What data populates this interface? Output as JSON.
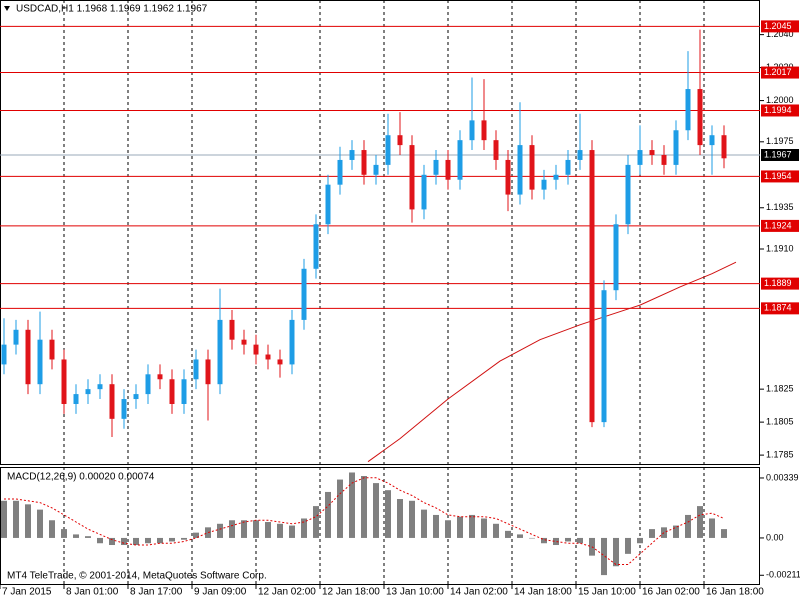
{
  "chart_data": [
    {
      "type": "candlestick",
      "title": "USDCAD,H1  1.1968 1.1969 1.1962 1.1967",
      "x": [
        1,
        4,
        7,
        10,
        13,
        16,
        19,
        22,
        25,
        28,
        31,
        34,
        37,
        40,
        43,
        46,
        49,
        52,
        55,
        58,
        61,
        64,
        67,
        70,
        73,
        76,
        79,
        82,
        85,
        88,
        91,
        94,
        97,
        100,
        103,
        106,
        109,
        112,
        115,
        118,
        121,
        124,
        127,
        130,
        133,
        136,
        139,
        142,
        145,
        148,
        151,
        154,
        157,
        160,
        163,
        166,
        169,
        172,
        175,
        178,
        181
      ],
      "open": [
        1.184,
        1.1852,
        1.1861,
        1.1828,
        1.1855,
        1.1843,
        1.1816,
        1.1822,
        1.1825,
        1.1828,
        1.1807,
        1.1819,
        1.1822,
        1.1834,
        1.1831,
        1.1816,
        1.1831,
        1.1843,
        1.1828,
        1.1867,
        1.1855,
        1.1852,
        1.1846,
        1.1843,
        1.184,
        1.1867,
        1.1898,
        1.1925,
        1.1949,
        1.1964,
        1.197,
        1.1955,
        1.1961,
        1.1979,
        1.1973,
        1.1934,
        1.1955,
        1.1964,
        1.1952,
        1.1976,
        1.1988,
        1.1976,
        1.1964,
        1.1943,
        1.1973,
        1.1946,
        1.1952,
        1.1955,
        1.1964,
        1.197,
        1.1805,
        1.1885,
        1.1925,
        1.1961,
        1.197,
        1.1967,
        1.1961,
        1.1982,
        1.2007,
        1.1973,
        1.1979
      ],
      "high": [
        1.1868,
        1.1867,
        1.1867,
        1.1872,
        1.1861,
        1.1849,
        1.1828,
        1.1831,
        1.1834,
        1.1834,
        1.1825,
        1.1828,
        1.184,
        1.184,
        1.1837,
        1.1837,
        1.1849,
        1.1849,
        1.1886,
        1.1873,
        1.1861,
        1.1858,
        1.1852,
        1.1849,
        1.1873,
        1.1904,
        1.1931,
        1.1955,
        1.1972,
        1.1976,
        1.1976,
        1.1967,
        1.1992,
        1.1993,
        1.1979,
        1.1961,
        1.197,
        1.197,
        1.1982,
        1.2014,
        1.2013,
        1.1982,
        1.197,
        1.1999,
        1.1979,
        1.1958,
        1.1961,
        1.197,
        1.1992,
        1.1976,
        1.1891,
        1.1931,
        1.1967,
        1.1985,
        1.1976,
        1.1973,
        1.1988,
        1.203,
        1.2043,
        1.1985,
        1.1985
      ],
      "low": [
        1.1834,
        1.1846,
        1.1822,
        1.1822,
        1.1837,
        1.181,
        1.181,
        1.1816,
        1.1819,
        1.1796,
        1.1801,
        1.1813,
        1.1816,
        1.1825,
        1.181,
        1.181,
        1.1825,
        1.1806,
        1.1822,
        1.1849,
        1.1846,
        1.184,
        1.1837,
        1.1832,
        1.1834,
        1.1861,
        1.1892,
        1.1919,
        1.1943,
        1.1958,
        1.1949,
        1.1949,
        1.1955,
        1.1967,
        1.1926,
        1.1928,
        1.1949,
        1.1946,
        1.1946,
        1.197,
        1.197,
        1.1958,
        1.1933,
        1.1937,
        1.194,
        1.194,
        1.1946,
        1.1949,
        1.1958,
        1.1802,
        1.1802,
        1.1879,
        1.1919,
        1.1955,
        1.1961,
        1.1955,
        1.1955,
        1.1976,
        1.1967,
        1.1955,
        1.1959
      ],
      "close": [
        1.1852,
        1.1861,
        1.1828,
        1.1855,
        1.1843,
        1.1816,
        1.1822,
        1.1825,
        1.1828,
        1.1807,
        1.1819,
        1.1822,
        1.1834,
        1.1831,
        1.1816,
        1.1831,
        1.1843,
        1.1828,
        1.1867,
        1.1855,
        1.1852,
        1.1846,
        1.1843,
        1.184,
        1.1867,
        1.1898,
        1.1925,
        1.1949,
        1.1964,
        1.197,
        1.1955,
        1.1961,
        1.1979,
        1.1973,
        1.1934,
        1.1955,
        1.1964,
        1.1952,
        1.1976,
        1.1988,
        1.1976,
        1.1964,
        1.1943,
        1.1973,
        1.1946,
        1.1952,
        1.1955,
        1.1964,
        1.197,
        1.1805,
        1.1885,
        1.1925,
        1.1961,
        1.197,
        1.1967,
        1.1961,
        1.1982,
        1.2007,
        1.1973,
        1.1979,
        1.1965
      ],
      "up_color": "#1e9de6",
      "down_color": "#e0141a",
      "ma": {
        "x": [
          92,
          100,
          112,
          125,
          135,
          145,
          150,
          160,
          170,
          178,
          184
        ],
        "values": [
          1.1781,
          1.1795,
          1.1819,
          1.1842,
          1.1855,
          1.1864,
          1.1868,
          1.1876,
          1.1887,
          1.1895,
          1.1902
        ],
        "color": "#d01010"
      },
      "levels": [
        1.2045,
        1.2017,
        1.1994,
        1.1954,
        1.1924,
        1.1889,
        1.1874
      ],
      "level_color": "#e00000",
      "current": 1.1967,
      "current_color": "#9aa8b8",
      "xlim": [
        0,
        190
      ],
      "ylim": [
        1.1779,
        1.2061
      ],
      "yticks": [
        {
          "value": 1.204,
          "label": "1.2040"
        },
        {
          "value": 1.202,
          "label": "1.2020"
        },
        {
          "value": 1.2,
          "label": "1.2000"
        },
        1.1975,
        1.1935,
        {
          "value": 1.191,
          "label": "1.1910"
        },
        1.1825,
        1.1805,
        1.1785
      ],
      "xticks": [
        {
          "value": 0,
          "label": "7 Jan 2015"
        },
        {
          "value": 16,
          "label": "8 Jan 01:00"
        },
        {
          "value": 32,
          "label": "8 Jan 17:00"
        },
        {
          "value": 48,
          "label": "9 Jan 09:00"
        },
        {
          "value": 64,
          "label": "12 Jan 02:00"
        },
        {
          "value": 80,
          "label": "12 Jan 18:00"
        },
        {
          "value": 96,
          "label": "13 Jan 10:00"
        },
        {
          "value": 112,
          "label": "14 Jan 02:00"
        },
        {
          "value": 128,
          "label": "14 Jan 18:00"
        },
        {
          "value": 144,
          "label": "15 Jan 10:00"
        },
        {
          "value": 160,
          "label": "16 Jan 02:00"
        },
        {
          "value": 176,
          "label": "16 Jan 18:00"
        }
      ],
      "xgrid": true
    },
    {
      "type": "bar",
      "title": "MACD(12,26,9) 0.00020 0.00074",
      "x": [
        1,
        4,
        7,
        10,
        13,
        16,
        19,
        22,
        25,
        28,
        31,
        34,
        37,
        40,
        43,
        46,
        49,
        52,
        55,
        58,
        61,
        64,
        67,
        70,
        73,
        76,
        79,
        82,
        85,
        88,
        91,
        94,
        97,
        100,
        103,
        106,
        109,
        112,
        115,
        118,
        121,
        124,
        127,
        130,
        133,
        136,
        139,
        142,
        145,
        148,
        151,
        154,
        157,
        160,
        163,
        166,
        169,
        172,
        175,
        178,
        181
      ],
      "values": [
        0.0021,
        0.0021,
        0.0019,
        0.0016,
        0.001,
        0.0005,
        0.0002,
        0.0001,
        -0.0003,
        -0.0004,
        -0.0004,
        -0.0004,
        -0.0003,
        -0.0003,
        -0.0002,
        -0.0001,
        0.0003,
        0.0006,
        0.0008,
        0.001,
        0.001,
        0.001,
        0.0009,
        0.0008,
        0.0007,
        0.0011,
        0.0018,
        0.0026,
        0.0033,
        0.0037,
        0.0035,
        0.0031,
        0.0027,
        0.0022,
        0.0021,
        0.0016,
        0.0013,
        0.001,
        0.0012,
        0.0013,
        0.0011,
        0.0008,
        0.0004,
        0.0002,
        0,
        -0.0003,
        -0.0004,
        -0.0002,
        -0.0003,
        -0.001,
        -0.0021,
        -0.0016,
        -0.0009,
        -0.0003,
        0.0005,
        0.0006,
        0.0007,
        0.0013,
        0.0018,
        0.0011,
        0.0005
      ],
      "color": "#808080",
      "signal": [
        0.0022,
        0.0022,
        0.0021,
        0.002,
        0.0017,
        0.0013,
        0.0009,
        0.0005,
        0.0002,
        -0.0001,
        -0.0003,
        -0.0004,
        -0.0004,
        -0.0003,
        -0.0003,
        -0.0002,
        0,
        0.0003,
        0.0005,
        0.0007,
        0.0009,
        0.001,
        0.001,
        0.0009,
        0.0008,
        0.0009,
        0.0012,
        0.0018,
        0.0025,
        0.0031,
        0.0034,
        0.0034,
        0.0031,
        0.0027,
        0.0024,
        0.002,
        0.0017,
        0.0013,
        0.0012,
        0.0012,
        0.0012,
        0.0011,
        0.0008,
        0.0005,
        0.0002,
        -0.0001,
        -0.0002,
        -0.0003,
        -0.0003,
        -0.0005,
        -0.001,
        -0.0015,
        -0.0015,
        -0.0009,
        -0.0003,
        0.0003,
        0.0006,
        0.0009,
        0.0013,
        0.0014,
        0.0011
      ],
      "signal_color": "#e00000",
      "xlim": [
        0,
        190
      ],
      "ylim": [
        -0.00266,
        0.00401
      ],
      "yticks": [
        0.00339,
        {
          "value": 0,
          "label": "0.00"
        },
        -0.00211
      ]
    }
  ],
  "footer": "MT4 TeleTrade, © 2001-2014, MetaQuotes Software Corp."
}
